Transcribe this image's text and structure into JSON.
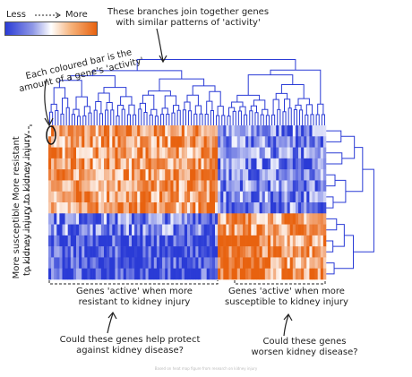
{
  "legend": {
    "low_label": "Less",
    "high_label": "More"
  },
  "annotations": {
    "branches_line1": "These branches join together genes",
    "branches_line2": "with similar patterns of 'activity'",
    "bar_line1": "Each coloured bar is the",
    "bar_line2": "amount of a gene's 'activity'"
  },
  "row_groups": {
    "resistant_line1": "More resistant",
    "resistant_line2": "to kidney injury",
    "susceptible_line1": "More susceptible",
    "susceptible_line2": "to kidney injury"
  },
  "column_groups": {
    "left_line1": "Genes 'active' when more",
    "left_line2": "resistant to kidney injury",
    "right_line1": "Genes 'active' when more",
    "right_line2": "susceptible to kidney injury"
  },
  "questions": {
    "protect_line1": "Could these genes help protect",
    "protect_line2": "against kidney disease?",
    "worsen_line1": "Could these genes",
    "worsen_line2": "worsen kidney disease?"
  },
  "footer": "Based on heat map figure from research on kidney injury",
  "colors": {
    "low": "#2a3bd6",
    "mid": "#ffffff",
    "high": "#e8620f",
    "ink": "#222222"
  }
}
